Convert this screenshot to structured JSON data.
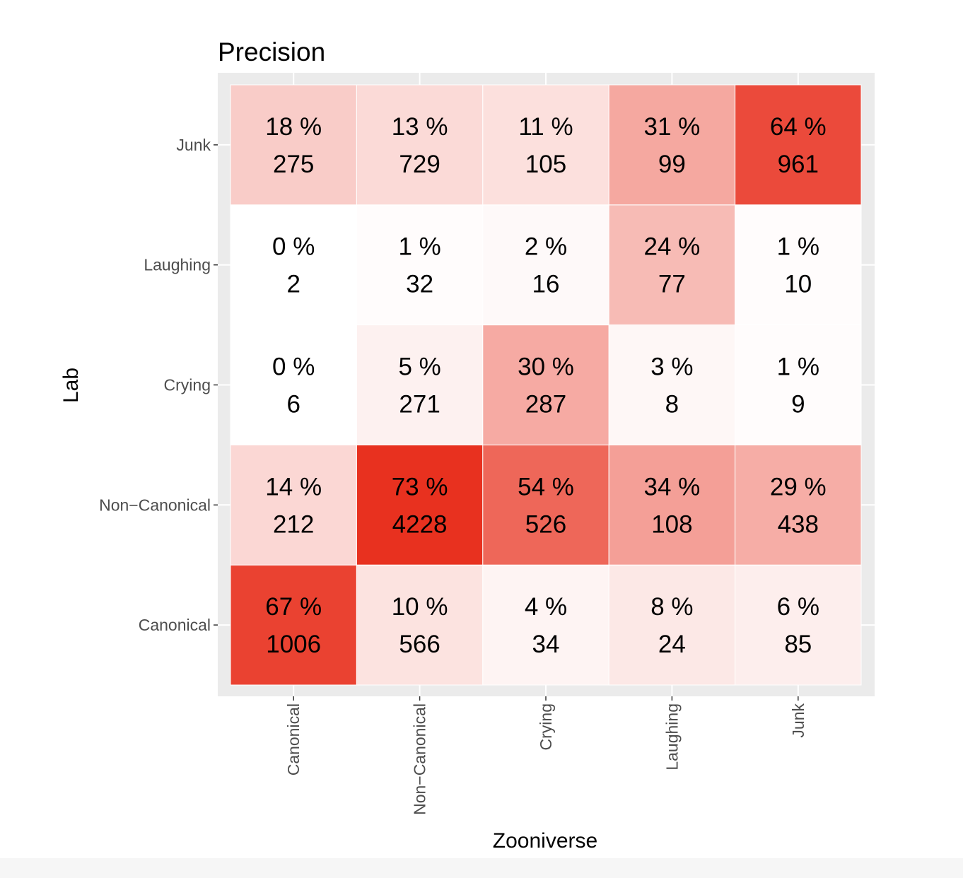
{
  "chart_data": {
    "type": "heatmap",
    "title": "Precision",
    "xlabel": "Zooniverse",
    "ylabel": "Lab",
    "x_categories": [
      "Canonical",
      "Non−Canonical",
      "Crying",
      "Laughing",
      "Junk"
    ],
    "y_categories": [
      "Canonical",
      "Non−Canonical",
      "Crying",
      "Laughing",
      "Junk"
    ],
    "counts": [
      [
        1006,
        566,
        34,
        24,
        85
      ],
      [
        212,
        4228,
        526,
        108,
        438
      ],
      [
        6,
        271,
        287,
        8,
        9
      ],
      [
        2,
        32,
        16,
        77,
        10
      ],
      [
        275,
        729,
        105,
        99,
        961
      ]
    ],
    "percent_labels": [
      [
        "67 %",
        "10 %",
        "4 %",
        "8 %",
        "6 %"
      ],
      [
        "14 %",
        "73 %",
        "54 %",
        "34 %",
        "29 %"
      ],
      [
        "0 %",
        "5 %",
        "30 %",
        "3 %",
        "1 %"
      ],
      [
        "0 %",
        "1 %",
        "2 %",
        "24 %",
        "1 %"
      ],
      [
        "18 %",
        "13 %",
        "11 %",
        "31 %",
        "64 %"
      ]
    ],
    "percent_values": [
      [
        67,
        10,
        4,
        8,
        6
      ],
      [
        14,
        73,
        54,
        34,
        29
      ],
      [
        0,
        5,
        30,
        3,
        1
      ],
      [
        0,
        1,
        2,
        24,
        1
      ],
      [
        18,
        13,
        11,
        31,
        64
      ]
    ],
    "color_scale": {
      "low": "#ffffff",
      "high": "#e8311f"
    },
    "panel_background": "#ebebeb",
    "grid": true,
    "legend": "none"
  }
}
